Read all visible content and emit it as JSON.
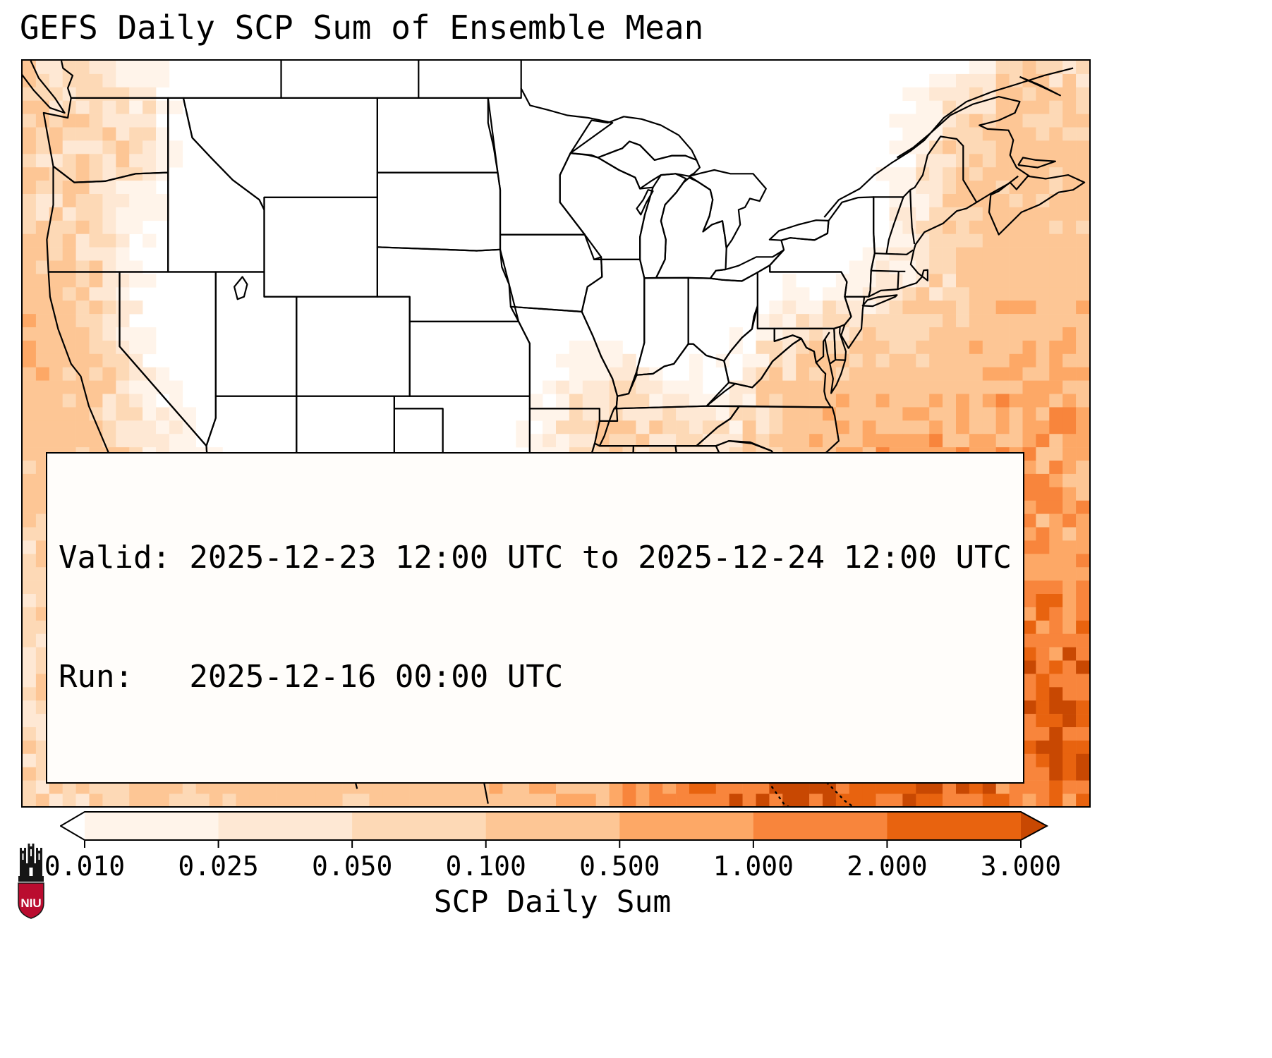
{
  "title": "GEFS Daily SCP Sum of Ensemble Mean",
  "info_box": {
    "valid_line": "Valid: 2025-12-23 12:00 UTC to 2025-12-24 12:00 UTC",
    "run_line": "Run:   2025-12-16 00:00 UTC"
  },
  "colorbar": {
    "label": "SCP Daily Sum",
    "tick_labels": [
      "0.010",
      "0.025",
      "0.050",
      "0.100",
      "0.500",
      "1.000",
      "2.000",
      "3.000"
    ]
  },
  "logo": {
    "text": "NIU",
    "color": "#ba0c2f"
  },
  "chart_data": {
    "type": "heatmap",
    "title": "GEFS Daily SCP Sum of Ensemble Mean",
    "colorbar_label": "SCP Daily Sum",
    "valid": "2025-12-23 12:00 UTC to 2025-12-24 12:00 UTC",
    "run": "2025-12-16 00:00 UTC",
    "boundaries": [
      0.01,
      0.025,
      0.05,
      0.1,
      0.5,
      1.0,
      2.0,
      3.0
    ],
    "interval_colors": [
      "#fff4ea",
      "#fee8d4",
      "#fdd9b6",
      "#fdc695",
      "#fda866",
      "#f8853c",
      "#e8630f"
    ],
    "under_color": "#ffffff",
    "over_color": "#c84802",
    "extent": {
      "lon": [
        -126,
        -60
      ],
      "lat": [
        20.5,
        50.5
      ]
    },
    "hotspots": [
      {
        "lon": -128.5,
        "lat": 49.5,
        "sigma_deg": 4.5,
        "peak": 0.1
      },
      {
        "lon": -126.5,
        "lat": 44.0,
        "sigma_deg": 3.5,
        "peak": 0.06
      },
      {
        "lon": -127.5,
        "lat": 38.5,
        "sigma_deg": 3.0,
        "peak": 0.35
      },
      {
        "lon": -125.0,
        "lat": 34.5,
        "sigma_deg": 3.5,
        "peak": 0.12
      },
      {
        "lon": -122.0,
        "lat": 22.0,
        "sigma_deg": 4.0,
        "peak": 0.08
      },
      {
        "lon": -121.0,
        "lat": 30.0,
        "sigma_deg": 4.0,
        "peak": 0.08
      },
      {
        "lon": -116.0,
        "lat": 25.0,
        "sigma_deg": 4.0,
        "peak": 0.1
      },
      {
        "lon": -110.0,
        "lat": 22.0,
        "sigma_deg": 4.0,
        "peak": 0.15
      },
      {
        "lon": -102.0,
        "lat": 21.5,
        "sigma_deg": 3.0,
        "peak": 0.12
      },
      {
        "lon": -97.0,
        "lat": 22.5,
        "sigma_deg": 4.0,
        "peak": 0.2
      },
      {
        "lon": -90.0,
        "lat": 23.0,
        "sigma_deg": 4.5,
        "peak": 0.35
      },
      {
        "lon": -85.0,
        "lat": 22.0,
        "sigma_deg": 3.5,
        "peak": 0.8
      },
      {
        "lon": -80.0,
        "lat": 23.5,
        "sigma_deg": 4.0,
        "peak": 2.2
      },
      {
        "lon": -73.0,
        "lat": 24.5,
        "sigma_deg": 4.5,
        "peak": 2.8
      },
      {
        "lon": -61.0,
        "lat": 23.0,
        "sigma_deg": 3.5,
        "peak": 2.0
      },
      {
        "lon": -70.0,
        "lat": 21.0,
        "sigma_deg": 3.0,
        "peak": 1.5
      },
      {
        "lon": -66.0,
        "lat": 28.0,
        "sigma_deg": 5.0,
        "peak": 1.2
      },
      {
        "lon": -62.0,
        "lat": 35.0,
        "sigma_deg": 4.5,
        "peak": 0.5
      },
      {
        "lon": -62.5,
        "lat": 40.0,
        "sigma_deg": 4.0,
        "peak": 0.18
      },
      {
        "lon": -66.0,
        "lat": 45.5,
        "sigma_deg": 3.0,
        "peak": 0.08
      },
      {
        "lon": -63.0,
        "lat": 47.5,
        "sigma_deg": 2.5,
        "peak": 0.15
      },
      {
        "lon": -70.5,
        "lat": 33.0,
        "sigma_deg": 3.5,
        "peak": 0.3
      },
      {
        "lon": -75.5,
        "lat": 35.5,
        "sigma_deg": 3.0,
        "peak": 0.25
      },
      {
        "lon": -79.0,
        "lat": 27.5,
        "sigma_deg": 3.0,
        "peak": 0.3
      },
      {
        "lon": -84.5,
        "lat": 27.5,
        "sigma_deg": 3.0,
        "peak": 0.15
      },
      {
        "lon": -88.5,
        "lat": 33.5,
        "sigma_deg": 2.5,
        "peak": 0.035
      },
      {
        "lon": -89.5,
        "lat": 36.5,
        "sigma_deg": 2.0,
        "peak": 0.03
      },
      {
        "lon": -92.0,
        "lat": 31.5,
        "sigma_deg": 2.5,
        "peak": 0.03
      },
      {
        "lon": -86.0,
        "lat": 35.5,
        "sigma_deg": 2.0,
        "peak": 0.025
      },
      {
        "lon": -83.0,
        "lat": 31.5,
        "sigma_deg": 2.5,
        "peak": 0.04
      },
      {
        "lon": -93.0,
        "lat": 28.5,
        "sigma_deg": 2.5,
        "peak": 0.05
      },
      {
        "lon": -120.5,
        "lat": 47.5,
        "sigma_deg": 2.0,
        "peak": 0.05
      },
      {
        "lon": -123.5,
        "lat": 41.5,
        "sigma_deg": 2.0,
        "peak": 0.06
      },
      {
        "lon": -91.5,
        "lat": 35.5,
        "sigma_deg": 2.0,
        "peak": 0.025
      }
    ]
  }
}
